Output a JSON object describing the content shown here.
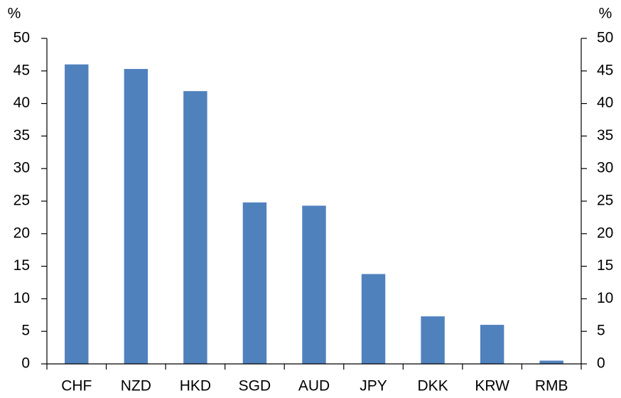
{
  "chart_data": {
    "type": "bar",
    "y_label": "%",
    "y2_label": "%",
    "categories": [
      "CHF",
      "NZD",
      "HKD",
      "SGD",
      "AUD",
      "JPY",
      "DKK",
      "KRW",
      "RMB"
    ],
    "values": [
      46,
      45.3,
      41.9,
      24.8,
      24.3,
      13.8,
      7.3,
      6,
      0.5
    ],
    "color": "#4f81bd",
    "ylim": [
      0,
      50
    ],
    "yticks": [
      0,
      5,
      10,
      15,
      20,
      25,
      30,
      35,
      40,
      45,
      50
    ],
    "y2lim": [
      0,
      50
    ],
    "y2ticks": [
      0,
      5,
      10,
      15,
      20,
      25,
      30,
      35,
      40,
      45,
      50
    ],
    "grid": false
  }
}
